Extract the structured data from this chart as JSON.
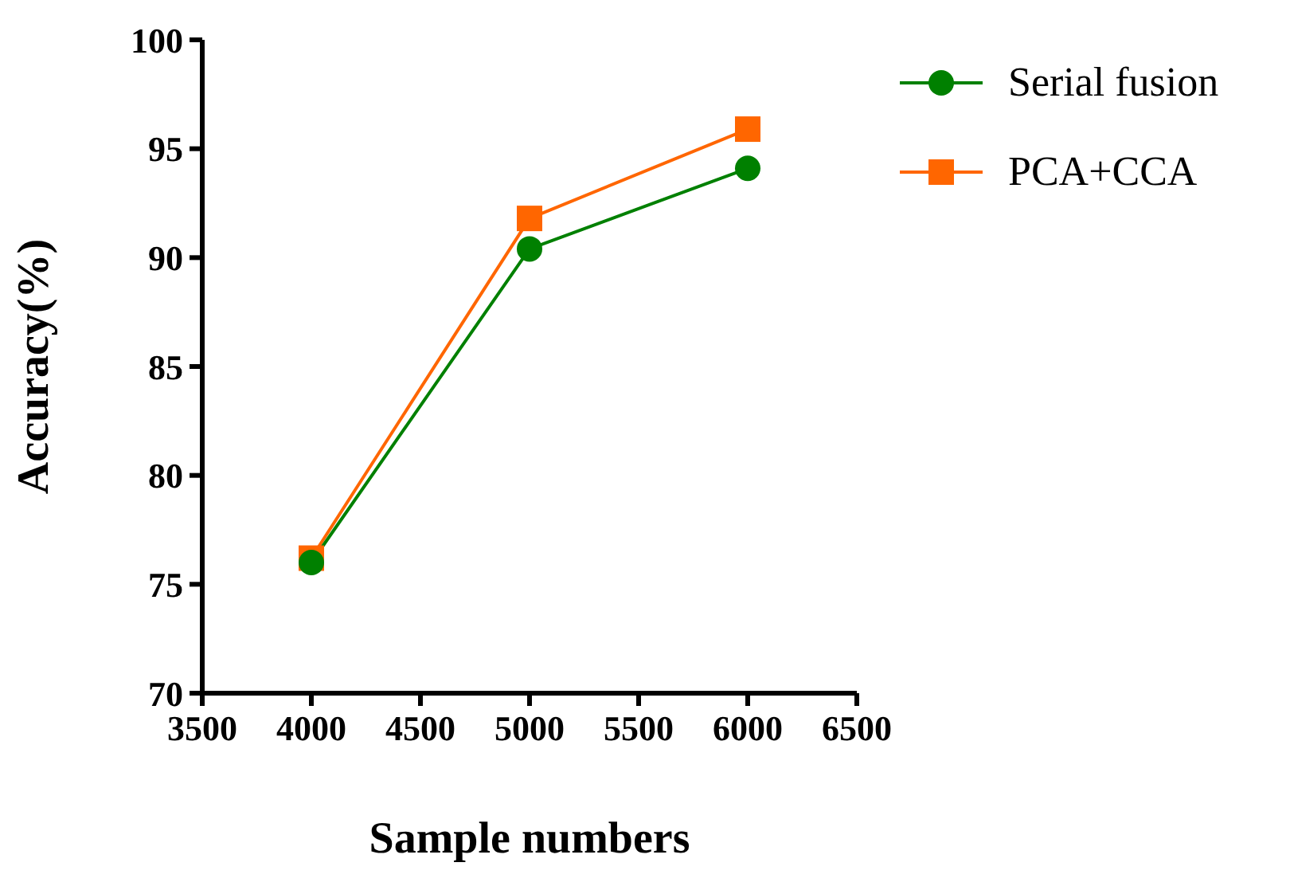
{
  "chart_data": {
    "type": "line",
    "xlabel": "Sample numbers",
    "ylabel": "Accuracy(%)",
    "x": [
      4000,
      5000,
      6000
    ],
    "series": [
      {
        "name": "Serial fusion",
        "color": "#008000",
        "marker": "circle",
        "values": [
          76.0,
          90.4,
          94.1
        ]
      },
      {
        "name": "PCA+CCA",
        "color": "#ff6600",
        "marker": "square",
        "values": [
          76.2,
          91.8,
          95.9
        ]
      }
    ],
    "xlim": [
      3500,
      6500
    ],
    "xticks": [
      3500,
      4000,
      4500,
      5000,
      5500,
      6000,
      6500
    ],
    "ylim": [
      70,
      100
    ],
    "yticks": [
      70,
      75,
      80,
      85,
      90,
      95,
      100
    ],
    "grid": false,
    "legend": "top right",
    "line_style": "solid"
  }
}
